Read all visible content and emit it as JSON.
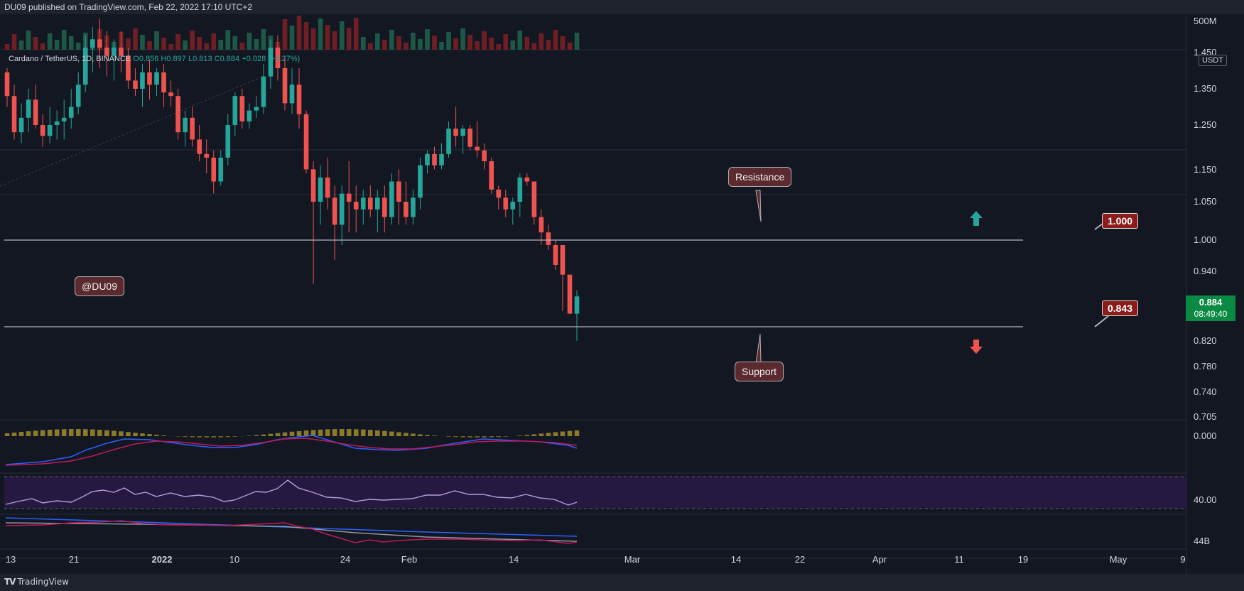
{
  "header": {
    "published": "DU09 published on TradingView.com, Feb 22, 2022 17:10 UTC+2"
  },
  "footer": {
    "brand": "TradingView"
  },
  "legend": {
    "symbol": "Cardano / TetherUS, 1D, BINANCE",
    "open": "O0.856",
    "high": "H0.897",
    "low": "L0.813",
    "close": "C0.884",
    "change": "+0.028 (+3.27%)"
  },
  "unit": "USDT",
  "current_price": {
    "price": "0.884",
    "countdown": "08:49:40",
    "color": "#0a8a43"
  },
  "annotations": {
    "resistance": "Resistance",
    "support": "Support",
    "watermark": "@DU09",
    "level_high": "1.000",
    "level_low": "0.843"
  },
  "chart_data": {
    "type": "candlestick",
    "price_axis_ticks": [
      "1.450",
      "1.350",
      "1.250",
      "1.150",
      "1.050",
      "1.000",
      "0.940",
      "0.880",
      "0.820",
      "0.780",
      "0.740",
      "0.705"
    ],
    "volume_axis_tick": "500M",
    "macd_axis_tick": "0.000",
    "rsi_axis_tick": "40.00",
    "bottom_axis_tick": "44B",
    "time_axis_ticks": [
      "13",
      "21",
      "2022",
      "10",
      "24",
      "Feb",
      "14",
      "Mar",
      "14",
      "22",
      "Apr",
      "11",
      "19",
      "May",
      "9"
    ],
    "horizontal_levels": [
      1.0,
      0.843
    ],
    "colors": {
      "up": "#26a69a",
      "down": "#ef5350",
      "resistance_level": "#9598a1"
    },
    "candles": [
      [
        1.39,
        1.4,
        1.3,
        1.33
      ],
      [
        1.33,
        1.36,
        1.21,
        1.23
      ],
      [
        1.23,
        1.31,
        1.2,
        1.27
      ],
      [
        1.27,
        1.35,
        1.23,
        1.32
      ],
      [
        1.32,
        1.36,
        1.24,
        1.25
      ],
      [
        1.25,
        1.28,
        1.19,
        1.22
      ],
      [
        1.22,
        1.3,
        1.2,
        1.25
      ],
      [
        1.25,
        1.29,
        1.21,
        1.26
      ],
      [
        1.26,
        1.32,
        1.21,
        1.27
      ],
      [
        1.27,
        1.35,
        1.24,
        1.3
      ],
      [
        1.3,
        1.39,
        1.28,
        1.36
      ],
      [
        1.36,
        1.48,
        1.34,
        1.45
      ],
      [
        1.45,
        1.5,
        1.39,
        1.47
      ],
      [
        1.47,
        1.52,
        1.4,
        1.45
      ],
      [
        1.45,
        1.49,
        1.38,
        1.43
      ],
      [
        1.43,
        1.47,
        1.37,
        1.45
      ],
      [
        1.45,
        1.49,
        1.39,
        1.43
      ],
      [
        1.43,
        1.45,
        1.35,
        1.37
      ],
      [
        1.37,
        1.4,
        1.33,
        1.35
      ],
      [
        1.35,
        1.41,
        1.3,
        1.39
      ],
      [
        1.39,
        1.42,
        1.32,
        1.36
      ],
      [
        1.36,
        1.4,
        1.33,
        1.39
      ],
      [
        1.39,
        1.41,
        1.3,
        1.34
      ],
      [
        1.34,
        1.37,
        1.3,
        1.33
      ],
      [
        1.33,
        1.35,
        1.21,
        1.23
      ],
      [
        1.23,
        1.29,
        1.19,
        1.27
      ],
      [
        1.27,
        1.3,
        1.19,
        1.21
      ],
      [
        1.21,
        1.25,
        1.15,
        1.17
      ],
      [
        1.17,
        1.21,
        1.12,
        1.16
      ],
      [
        1.16,
        1.18,
        1.07,
        1.1
      ],
      [
        1.1,
        1.18,
        1.09,
        1.16
      ],
      [
        1.16,
        1.28,
        1.14,
        1.25
      ],
      [
        1.25,
        1.34,
        1.22,
        1.33
      ],
      [
        1.33,
        1.35,
        1.24,
        1.26
      ],
      [
        1.26,
        1.31,
        1.24,
        1.29
      ],
      [
        1.29,
        1.33,
        1.27,
        1.3
      ],
      [
        1.3,
        1.41,
        1.28,
        1.38
      ],
      [
        1.38,
        1.47,
        1.35,
        1.45
      ],
      [
        1.45,
        1.48,
        1.37,
        1.4
      ],
      [
        1.4,
        1.43,
        1.29,
        1.31
      ],
      [
        1.31,
        1.4,
        1.28,
        1.36
      ],
      [
        1.36,
        1.4,
        1.24,
        1.28
      ],
      [
        1.28,
        1.29,
        1.12,
        1.13
      ],
      [
        1.13,
        1.15,
        0.91,
        1.05
      ],
      [
        1.05,
        1.14,
        1.02,
        1.11
      ],
      [
        1.11,
        1.16,
        1.04,
        1.06
      ],
      [
        1.06,
        1.09,
        0.96,
        1.02
      ],
      [
        1.02,
        1.09,
        0.99,
        1.07
      ],
      [
        1.07,
        1.15,
        1.01,
        1.05
      ],
      [
        1.05,
        1.09,
        1.01,
        1.04
      ],
      [
        1.04,
        1.08,
        1.02,
        1.06
      ],
      [
        1.06,
        1.09,
        1.03,
        1.04
      ],
      [
        1.04,
        1.08,
        1.01,
        1.06
      ],
      [
        1.06,
        1.09,
        1.01,
        1.03
      ],
      [
        1.03,
        1.12,
        1.02,
        1.1
      ],
      [
        1.1,
        1.13,
        1.02,
        1.05
      ],
      [
        1.05,
        1.1,
        1.02,
        1.03
      ],
      [
        1.03,
        1.08,
        1.02,
        1.06
      ],
      [
        1.06,
        1.16,
        1.04,
        1.14
      ],
      [
        1.14,
        1.18,
        1.12,
        1.17
      ],
      [
        1.17,
        1.19,
        1.13,
        1.14
      ],
      [
        1.14,
        1.2,
        1.13,
        1.17
      ],
      [
        1.17,
        1.26,
        1.16,
        1.24
      ],
      [
        1.24,
        1.3,
        1.19,
        1.22
      ],
      [
        1.22,
        1.25,
        1.17,
        1.24
      ],
      [
        1.24,
        1.25,
        1.18,
        1.19
      ],
      [
        1.19,
        1.26,
        1.16,
        1.18
      ],
      [
        1.18,
        1.2,
        1.13,
        1.15
      ],
      [
        1.15,
        1.16,
        1.07,
        1.08
      ],
      [
        1.08,
        1.09,
        1.04,
        1.06
      ],
      [
        1.06,
        1.08,
        1.03,
        1.04
      ],
      [
        1.04,
        1.06,
        1.02,
        1.05
      ],
      [
        1.05,
        1.12,
        1.03,
        1.11
      ],
      [
        1.11,
        1.12,
        1.09,
        1.1
      ],
      [
        1.1,
        1.1,
        1.02,
        1.03
      ],
      [
        1.03,
        1.04,
        0.99,
        1.01
      ],
      [
        1.01,
        1.02,
        0.98,
        0.99
      ],
      [
        0.99,
        1.0,
        0.94,
        0.95
      ],
      [
        0.99,
        0.99,
        0.86,
        0.93
      ],
      [
        0.93,
        0.93,
        0.86,
        0.856
      ],
      [
        0.856,
        0.897,
        0.813,
        0.884
      ]
    ]
  }
}
